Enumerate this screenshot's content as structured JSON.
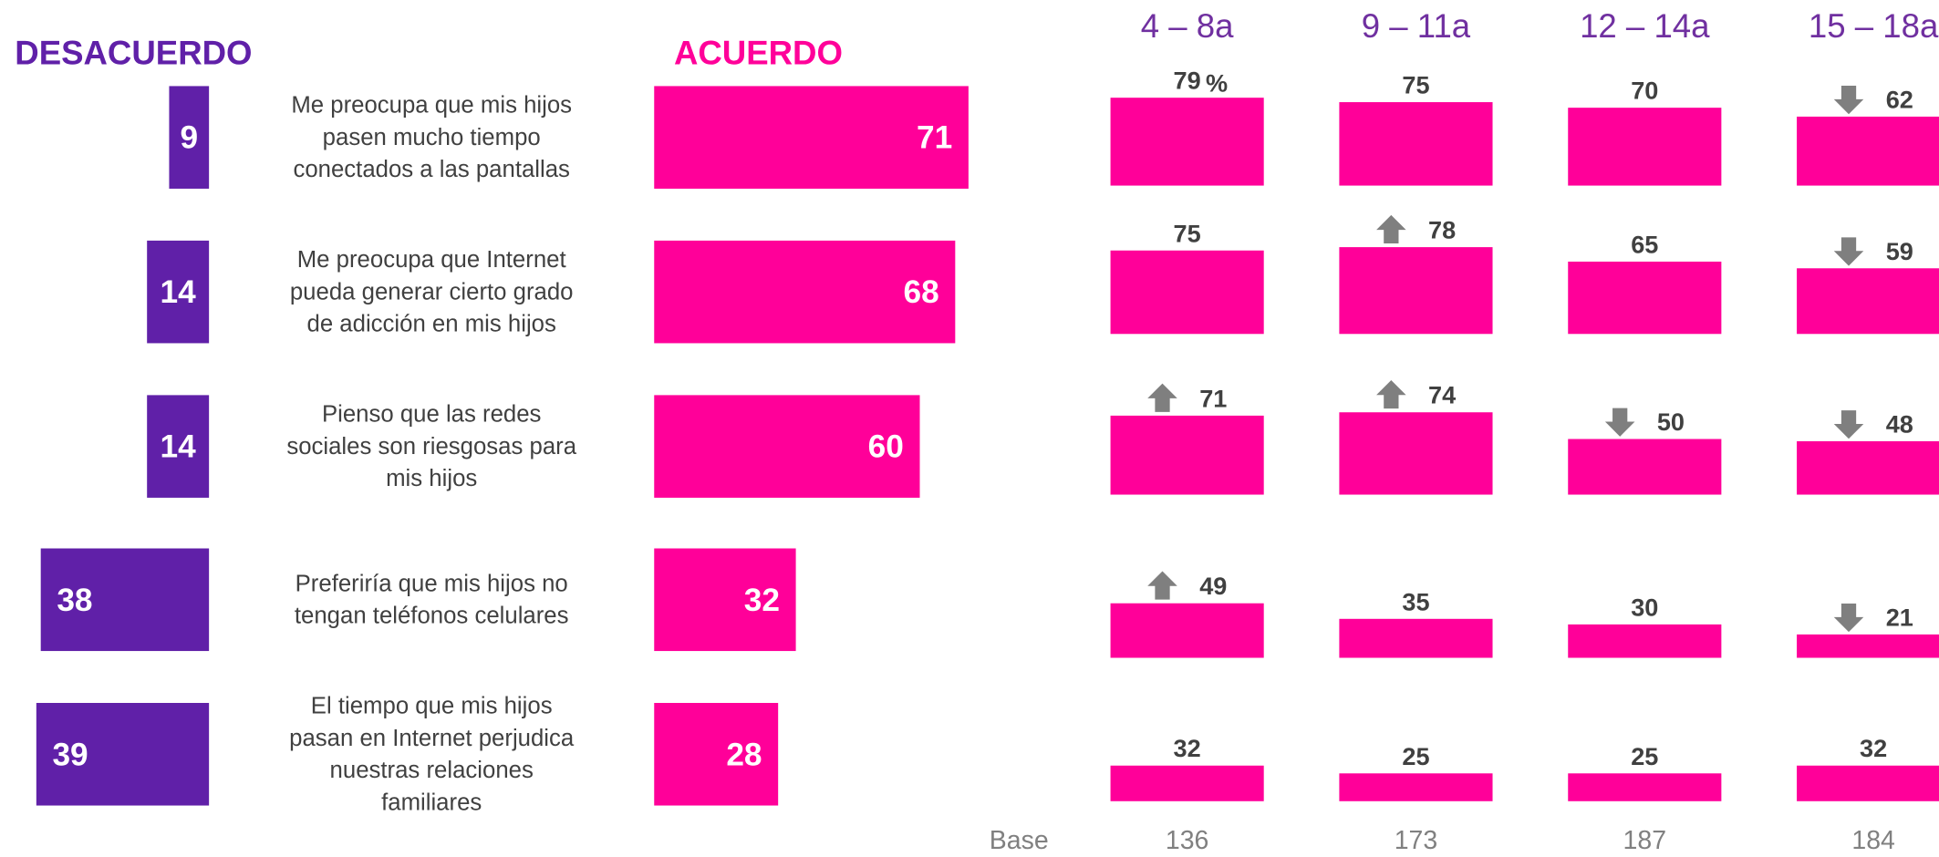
{
  "base_label": "Base",
  "chart_data": [
    {
      "type": "bar",
      "orientation": "horizontal",
      "direction": "left",
      "title": "DESACUERDO",
      "color": "#6020a8",
      "categories": [
        "Me preocupa que mis hijos pasen mucho tiempo conectados a las pantallas",
        "Me preocupa que Internet pueda generar cierto grado de adicción en mis hijos",
        "Pienso que las redes sociales son riesgosas para mis hijos",
        "Preferiría que mis hijos no tengan teléfonos celulares",
        "El tiempo que mis hijos pasan en Internet perjudica nuestras relaciones familiares"
      ],
      "values": [
        9,
        14,
        14,
        38,
        39
      ]
    },
    {
      "type": "bar",
      "orientation": "horizontal",
      "direction": "right",
      "title": "ACUERDO",
      "color": "#ff0099",
      "values": [
        71,
        68,
        60,
        32,
        28
      ]
    },
    {
      "type": "column",
      "title": "4 – 8a",
      "color": "#ff0099",
      "unit": "%",
      "values": [
        79,
        75,
        71,
        49,
        32
      ],
      "markers": [
        null,
        null,
        "up",
        "up",
        null
      ],
      "base": 136
    },
    {
      "type": "column",
      "title": "9 – 11a",
      "color": "#ff0099",
      "values": [
        75,
        78,
        74,
        35,
        25
      ],
      "markers": [
        null,
        "up",
        "up",
        null,
        null
      ],
      "base": 173
    },
    {
      "type": "column",
      "title": "12 – 14a",
      "color": "#ff0099",
      "values": [
        70,
        65,
        50,
        30,
        25
      ],
      "markers": [
        null,
        null,
        "down",
        null,
        null
      ],
      "base": 187
    },
    {
      "type": "column",
      "title": "15 – 18a",
      "color": "#ff0099",
      "values": [
        62,
        59,
        48,
        21,
        32
      ],
      "markers": [
        "down",
        "down",
        "down",
        "down",
        null
      ],
      "base": 184
    }
  ]
}
